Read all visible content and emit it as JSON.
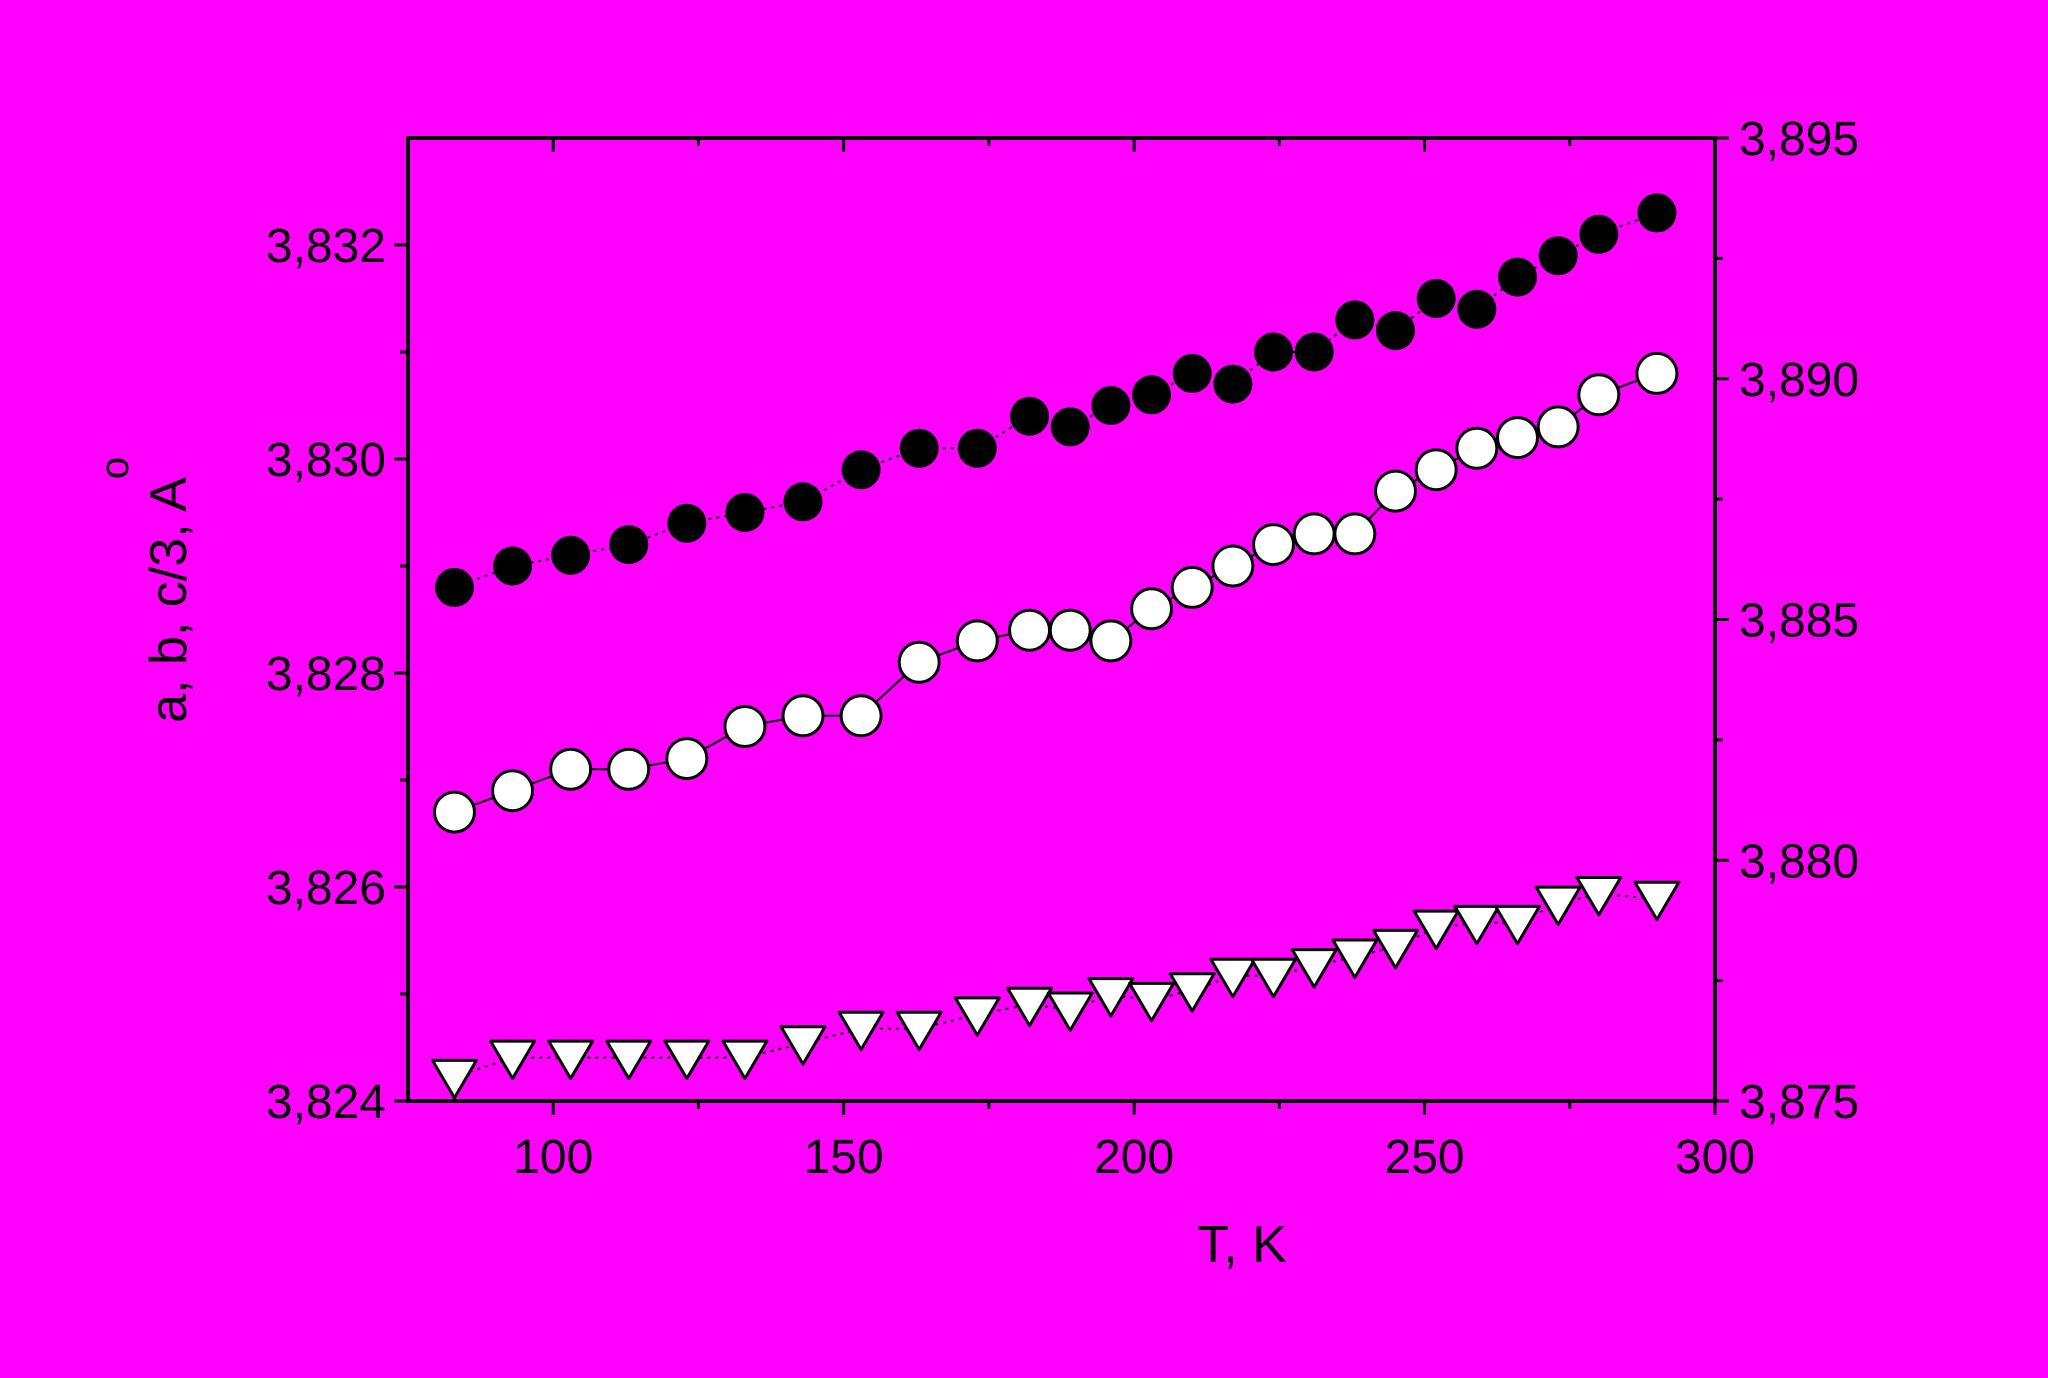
{
  "chart_data": {
    "type": "scatter",
    "xlabel": "T, K",
    "ylabel": "a, b, c/3, A",
    "ylabel_ring": "o",
    "x_range": [
      75,
      300
    ],
    "y_left_range": [
      3.824,
      3.833
    ],
    "y_right_range": [
      3.875,
      3.895
    ],
    "x_ticks": [
      {
        "value": 100,
        "label": "100"
      },
      {
        "value": 150,
        "label": "150"
      },
      {
        "value": 200,
        "label": "200"
      },
      {
        "value": 250,
        "label": "250"
      },
      {
        "value": 300,
        "label": "300"
      }
    ],
    "y_left_ticks": [
      {
        "value": 3.824,
        "label": "3,824"
      },
      {
        "value": 3.826,
        "label": "3,826"
      },
      {
        "value": 3.828,
        "label": "3,828"
      },
      {
        "value": 3.83,
        "label": "3,830"
      },
      {
        "value": 3.832,
        "label": "3,832"
      }
    ],
    "y_right_ticks": [
      {
        "value": 3.875,
        "label": "3,875"
      },
      {
        "value": 3.88,
        "label": "3,880"
      },
      {
        "value": 3.885,
        "label": "3,885"
      },
      {
        "value": 3.89,
        "label": "3,890"
      },
      {
        "value": 3.895,
        "label": "3,895"
      }
    ],
    "grid": false,
    "background_color": "#ff00ff",
    "series": [
      {
        "marker": "filled-circle",
        "axis": "left",
        "color": "#000000",
        "x": [
          83,
          93,
          103,
          113,
          123,
          133,
          143,
          153,
          163,
          173,
          182,
          189,
          196,
          203,
          210,
          217,
          224,
          231,
          238,
          245,
          252,
          259,
          266,
          273,
          280,
          290
        ],
        "y": [
          3.8288,
          3.829,
          3.8291,
          3.8292,
          3.8294,
          3.8295,
          3.8296,
          3.8299,
          3.8301,
          3.8301,
          3.8304,
          3.8303,
          3.8305,
          3.8306,
          3.8308,
          3.8307,
          3.831,
          3.831,
          3.8313,
          3.8312,
          3.8315,
          3.8314,
          3.8317,
          3.8319,
          3.8321,
          3.8323
        ]
      },
      {
        "marker": "open-circle",
        "axis": "left",
        "color": "#ffffff",
        "x": [
          83,
          93,
          103,
          113,
          123,
          133,
          143,
          153,
          163,
          173,
          182,
          189,
          196,
          203,
          210,
          217,
          224,
          231,
          238,
          245,
          252,
          259,
          266,
          273,
          280,
          290
        ],
        "y": [
          3.8267,
          3.8269,
          3.8271,
          3.8271,
          3.8272,
          3.8275,
          3.8276,
          3.8276,
          3.8281,
          3.8283,
          3.8284,
          3.8284,
          3.8283,
          3.8286,
          3.8288,
          3.829,
          3.8292,
          3.8293,
          3.8293,
          3.8297,
          3.8299,
          3.8301,
          3.8302,
          3.8303,
          3.8306,
          3.8308
        ]
      },
      {
        "marker": "open-triangle-down",
        "axis": "right",
        "color": "#ffffff",
        "x": [
          83,
          93,
          103,
          113,
          123,
          133,
          143,
          153,
          163,
          173,
          182,
          189,
          196,
          203,
          210,
          217,
          224,
          231,
          238,
          245,
          252,
          259,
          266,
          273,
          280,
          290
        ],
        "y": [
          3.8755,
          3.8759,
          3.8759,
          3.8759,
          3.8759,
          3.8759,
          3.8762,
          3.8765,
          3.8765,
          3.8768,
          3.877,
          3.8769,
          3.8772,
          3.8771,
          3.8773,
          3.8776,
          3.8776,
          3.8778,
          3.878,
          3.8782,
          3.8786,
          3.8787,
          3.8787,
          3.8791,
          3.8793,
          3.8792
        ]
      }
    ]
  }
}
